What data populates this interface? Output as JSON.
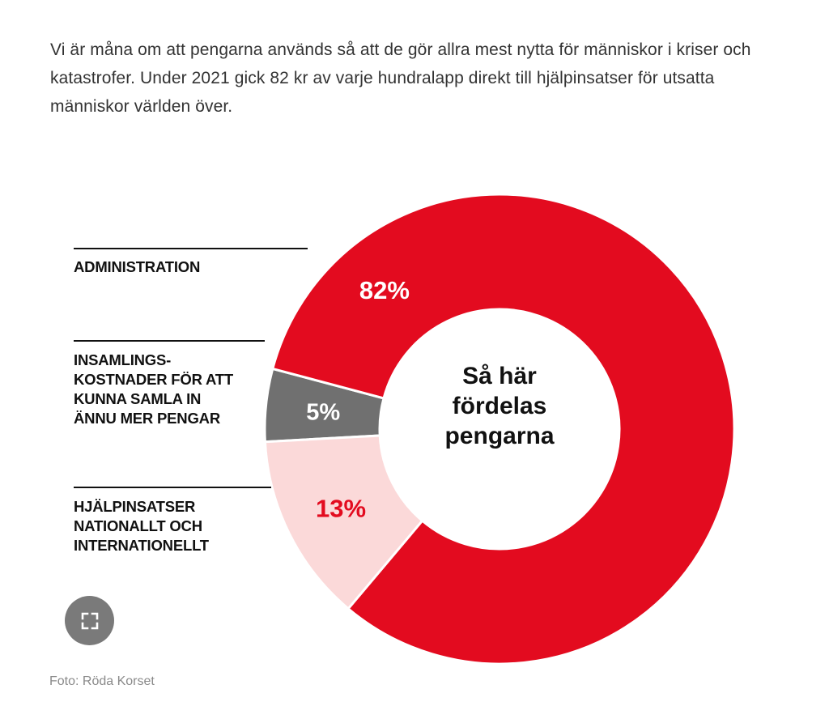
{
  "intro_text": "Vi är måna om att pengarna används så att de gör allra mest nytta för människor i kriser och katastrofer. Under 2021 gick 82 kr av varje hundralapp direkt till hjälpinsatser för utsatta människor världen över.",
  "chart_data": {
    "type": "pie",
    "variant": "donut",
    "title": "Så här fördelas pengarna",
    "title_lines": [
      "Så här",
      "fördelas",
      "pengarna"
    ],
    "slices": [
      {
        "key": "administration",
        "label": "Administration",
        "label_lines": [
          "ADMINISTRATION"
        ],
        "value": 5,
        "display": "5%",
        "color": "#707070",
        "text_color": "#ffffff"
      },
      {
        "key": "insamling",
        "label": "Insamlingskostnader för att kunna samla in ännu mer pengar",
        "label_lines": [
          "INSAMLINGS-",
          "KOSTNADER FÖR ATT",
          "KUNNA SAMLA IN",
          "ÄNNU MER PENGAR"
        ],
        "value": 13,
        "display": "13%",
        "color": "#fbd9d9",
        "text_color": "#e30b1f"
      },
      {
        "key": "hjalpinsatser",
        "label": "Hjälpinsatser nationallt och internationellt",
        "label_lines": [
          "HJÄLPINSATSER",
          "NATIONALLT OCH",
          "INTERNATIONELLT"
        ],
        "value": 82,
        "display": "82%",
        "color": "#e30b1f",
        "text_color": "#ffffff"
      }
    ]
  },
  "fullscreen_icon": "expand-icon",
  "caption": "Foto: Röda Korset"
}
